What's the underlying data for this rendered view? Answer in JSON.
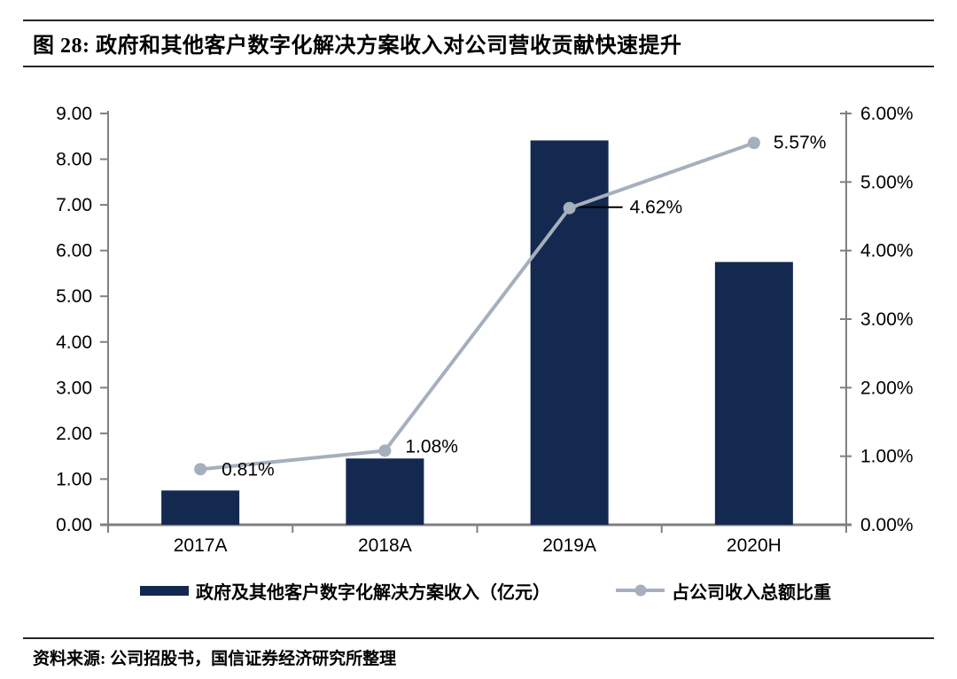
{
  "figure": {
    "title": "图 28:  政府和其他客户数字化解决方案收入对公司营收贡献快速提升",
    "source": "资料来源: 公司招股书，国信证券经济研究所整理"
  },
  "chart_data": {
    "type": "combo-bar-line",
    "categories": [
      "2017A",
      "2018A",
      "2019A",
      "2020H"
    ],
    "series": [
      {
        "name": "政府及其他客户数字化解决方案收入（亿元）",
        "type": "bar",
        "axis": "left",
        "values": [
          0.75,
          1.45,
          8.41,
          5.75
        ],
        "color": "#14294F"
      },
      {
        "name": "占公司收入总额比重",
        "type": "line",
        "axis": "right",
        "values": [
          0.81,
          1.08,
          4.62,
          5.57
        ],
        "point_labels": [
          "0.81%",
          "1.08%",
          "4.62%",
          "5.57%"
        ],
        "color": "#A5AFBD"
      }
    ],
    "left_axis": {
      "min": 0,
      "max": 9,
      "tick_labels": [
        "9.00",
        "8.00",
        "7.00",
        "6.00",
        "5.00",
        "4.00",
        "3.00",
        "2.00",
        "1.00",
        "0.00"
      ]
    },
    "right_axis": {
      "min": 0,
      "max": 6,
      "tick_labels": [
        "6.00%",
        "5.00%",
        "4.00%",
        "3.00%",
        "2.00%",
        "1.00%",
        "0.00%"
      ]
    },
    "grid": false,
    "legend_position": "bottom",
    "colors": {
      "bar": "#14294F",
      "line": "#A5AFBD",
      "axis": "#808080",
      "leader": "#000000",
      "label": "#000000"
    }
  }
}
